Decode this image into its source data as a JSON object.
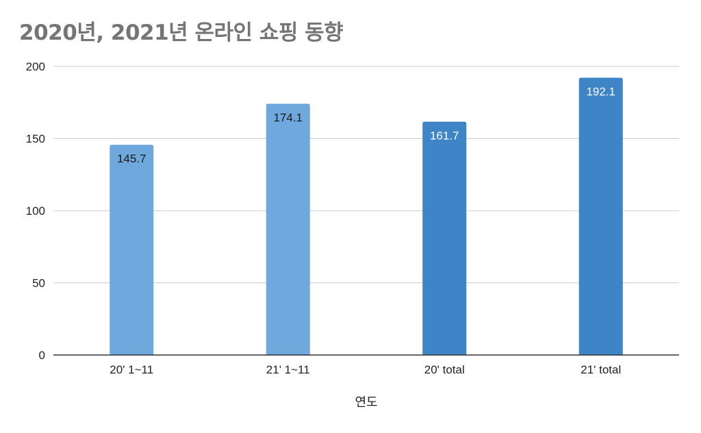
{
  "chart_data": {
    "type": "bar",
    "title": "2020년, 2021년 온라인 쇼핑 동향",
    "xlabel": "연도",
    "ylabel": "",
    "categories": [
      "20' 1~11",
      "21' 1~11",
      "20' total",
      "21' total"
    ],
    "values": [
      145.7,
      174.1,
      161.7,
      192.1
    ],
    "data_labels": [
      "145.7",
      "174.1",
      "161.7",
      "192.1"
    ],
    "bar_colors": [
      "#6fa8dc",
      "#6fa8dc",
      "#3d85c6",
      "#3d85c6"
    ],
    "label_colors": [
      "#1a1a1a",
      "#1a1a1a",
      "#ffffff",
      "#ffffff"
    ],
    "ylim": [
      0,
      200
    ],
    "yticks": [
      0,
      50,
      100,
      150,
      200
    ],
    "ytick_labels": [
      "0",
      "50",
      "100",
      "150",
      "200"
    ],
    "grid": true,
    "legend": "none"
  }
}
